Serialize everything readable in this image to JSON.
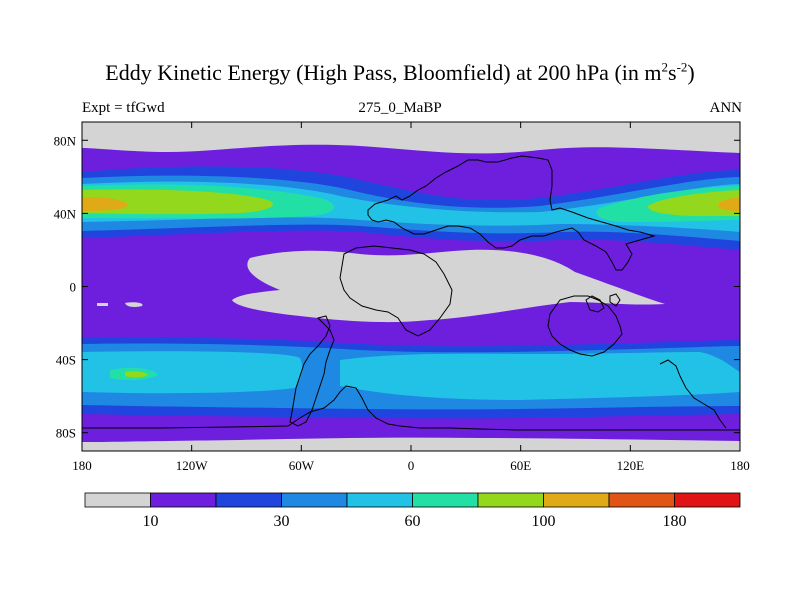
{
  "header": {
    "title_pre": "Eddy Kinetic Energy (High Pass, Bloomfield) at 200 hPa (in m",
    "title_sup1": "2",
    "title_mid": "s",
    "title_sup2": "-2",
    "title_post": ")",
    "left_label": "Expt = tfGwd",
    "center_label": "275_0_MaBP",
    "right_label": "ANN"
  },
  "chart_data": {
    "type": "heatmap",
    "title": "Eddy Kinetic Energy (High Pass, Bloomfield) at 200 hPa (in m2s-2)",
    "subtitle": "275_0_MaBP",
    "annotations": [
      "Expt = tfGwd",
      "ANN"
    ],
    "xlim": [
      -180,
      180
    ],
    "ylim": [
      -90,
      90
    ],
    "x_ticks": [
      -180,
      -120,
      -60,
      0,
      60,
      120,
      180
    ],
    "x_tick_labels": [
      "180",
      "120W",
      "60W",
      "0",
      "60E",
      "120E",
      "180"
    ],
    "y_ticks": [
      80,
      40,
      0,
      -40,
      -80
    ],
    "y_tick_labels": [
      "80N",
      "40N",
      "0",
      "40S",
      "80S"
    ],
    "colorbar": {
      "levels": [
        10,
        20,
        30,
        45,
        60,
        80,
        100,
        140,
        180
      ],
      "labels": [
        "10",
        "30",
        "60",
        "100",
        "180"
      ],
      "label_levels": [
        10,
        30,
        60,
        100,
        180
      ],
      "colors": [
        "#d4d4d4",
        "#6d1fdd",
        "#1f45de",
        "#1f88e3",
        "#22c2e6",
        "#22e0a5",
        "#93d81d",
        "#e0aa16",
        "#e05414",
        "#e01414"
      ]
    },
    "field_samples_by_latitude": [
      {
        "lat": 80,
        "level": 0
      },
      {
        "lat": 65,
        "level": 1
      },
      {
        "lat": 48,
        "level": 5
      },
      {
        "lat": 40,
        "level": 3
      },
      {
        "lat": 25,
        "level": 1
      },
      {
        "lat": 0,
        "level": 0
      },
      {
        "lat": -20,
        "level": 1
      },
      {
        "lat": -38,
        "level": 3
      },
      {
        "lat": -50,
        "level": 4
      },
      {
        "lat": -65,
        "level": 2
      },
      {
        "lat": -80,
        "level": 1
      },
      {
        "lat": -88,
        "level": 0
      }
    ]
  }
}
